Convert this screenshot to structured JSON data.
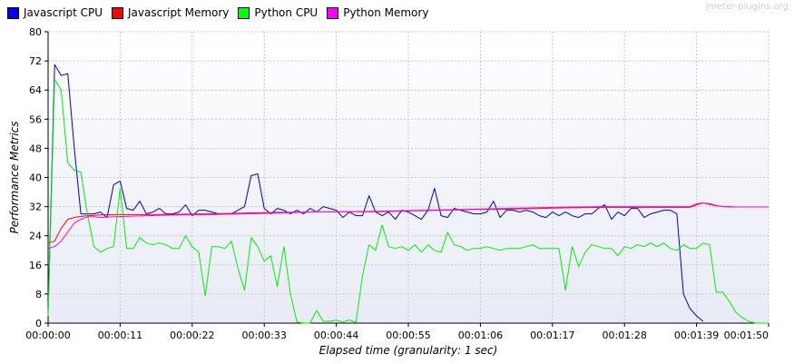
{
  "watermark": "jmeter-plugins.org",
  "colors": {
    "background": "#ffffff",
    "plot_bg_top": "#ffffff",
    "plot_bg_bottom": "#e8ebf5",
    "grid": "#c8c8c8",
    "axis": "#000000"
  },
  "chart_data": {
    "type": "line",
    "title": "",
    "xlabel": "Elapsed time (granularity: 1 sec)",
    "ylabel": "Performance Metrics",
    "ylim": [
      0,
      80
    ],
    "xlim": [
      0,
      110
    ],
    "grid": true,
    "legend_position": "top-left",
    "y_ticks": [
      0,
      8,
      16,
      24,
      32,
      40,
      48,
      56,
      64,
      72,
      80
    ],
    "y_tick_labels": [
      "0",
      "8",
      "16",
      "24",
      "32",
      "40",
      "48",
      "56",
      "64",
      "72",
      "80"
    ],
    "x_ticks": [
      0,
      11,
      22,
      33,
      44,
      55,
      66,
      77,
      88,
      99,
      110
    ],
    "x_tick_labels": [
      "00:00:00",
      "00:00:11",
      "00:00:22",
      "00:00:33",
      "00:00:44",
      "00:00:55",
      "00:01:06",
      "00:01:17",
      "00:01:28",
      "00:01:39",
      "00:01:50"
    ],
    "series": [
      {
        "name": "Javascript CPU",
        "color": "#0000cc",
        "legend_color": "#0000ff",
        "x": [
          0,
          1,
          2,
          3,
          4,
          5,
          6,
          7,
          8,
          9,
          10,
          11,
          12,
          13,
          14,
          15,
          16,
          17,
          18,
          19,
          20,
          21,
          22,
          23,
          24,
          25,
          26,
          27,
          28,
          29,
          30,
          31,
          32,
          33,
          34,
          35,
          36,
          37,
          38,
          39,
          40,
          41,
          42,
          43,
          44,
          45,
          46,
          47,
          48,
          49,
          50,
          51,
          52,
          53,
          54,
          55,
          56,
          57,
          58,
          59,
          60,
          61,
          62,
          63,
          64,
          65,
          66,
          67,
          68,
          69,
          70,
          71,
          72,
          73,
          74,
          75,
          76,
          77,
          78,
          79,
          80,
          81,
          82,
          83,
          84,
          85,
          86,
          87,
          88,
          89,
          90,
          91,
          92,
          93,
          94,
          95,
          96,
          97,
          98,
          99,
          100
        ],
        "values": [
          3,
          71,
          68,
          68.5,
          48,
          30,
          30,
          30,
          30.5,
          29,
          38,
          39,
          31.5,
          31,
          33.5,
          30,
          30.5,
          31.5,
          30,
          30,
          30.5,
          32.5,
          29.5,
          31,
          31,
          30.5,
          30,
          30,
          30,
          31,
          32,
          40.5,
          41,
          31.5,
          30,
          31.5,
          31,
          30,
          31,
          30,
          31.5,
          30.5,
          32,
          31.5,
          31,
          29,
          30.5,
          29.5,
          29.5,
          35,
          30.5,
          29.5,
          30.5,
          28.5,
          31,
          30.5,
          29.5,
          28.5,
          31,
          37,
          29.5,
          29,
          31.5,
          31,
          30.5,
          30,
          30,
          30.5,
          33.5,
          29,
          31,
          31,
          30.5,
          31,
          30.5,
          29.5,
          29,
          30.5,
          29.5,
          30.5,
          29.5,
          29,
          30,
          30,
          31.5,
          32.5,
          28.5,
          30.5,
          29.5,
          31.5,
          31.5,
          29,
          30,
          30.5,
          31,
          31,
          30,
          8,
          4,
          2,
          0.5
        ]
      },
      {
        "name": "Javascript Memory",
        "color": "#ff0000",
        "legend_color": "#ff0000",
        "x": [
          0,
          1,
          2,
          3,
          4,
          5,
          6,
          7,
          8,
          10,
          15,
          20,
          25,
          30,
          35,
          40,
          45,
          50,
          55,
          60,
          65,
          70,
          75,
          80,
          85,
          90,
          95,
          98,
          99,
          100,
          101,
          102,
          103,
          104,
          105,
          106,
          107,
          108,
          109,
          110
        ],
        "values": [
          22,
          22.5,
          26,
          28.5,
          29,
          29.3,
          29.5,
          29.6,
          29.7,
          29.8,
          29.8,
          29.9,
          30,
          30.2,
          30.4,
          30.5,
          30.6,
          30.6,
          30.8,
          31,
          31.2,
          31.3,
          31.5,
          31.7,
          31.8,
          31.8,
          31.8,
          31.8,
          32.5,
          33,
          32.8,
          32.3,
          32,
          32,
          31.9,
          31.9,
          31.9,
          31.9,
          31.9,
          31.9
        ]
      },
      {
        "name": "Python CPU",
        "color": "#00ee00",
        "legend_color": "#00ff00",
        "x": [
          0,
          1,
          2,
          3,
          4,
          5,
          6,
          7,
          8,
          9,
          10,
          11,
          12,
          13,
          14,
          15,
          16,
          17,
          18,
          19,
          20,
          21,
          22,
          23,
          24,
          25,
          26,
          27,
          28,
          29,
          30,
          31,
          32,
          33,
          34,
          35,
          36,
          37,
          38,
          39,
          40,
          41,
          42,
          43,
          44,
          45,
          46,
          47,
          48,
          49,
          50,
          51,
          52,
          53,
          54,
          55,
          56,
          57,
          58,
          59,
          60,
          61,
          62,
          63,
          64,
          65,
          66,
          67,
          68,
          69,
          70,
          71,
          72,
          73,
          74,
          75,
          76,
          77,
          78,
          79,
          80,
          81,
          82,
          83,
          84,
          85,
          86,
          87,
          88,
          89,
          90,
          91,
          92,
          93,
          94,
          95,
          96,
          97,
          98,
          99,
          100,
          101,
          102,
          103,
          104,
          105,
          106,
          107,
          108,
          109,
          110
        ],
        "values": [
          2,
          67,
          64,
          44,
          42,
          41.5,
          30,
          21,
          19.5,
          20.5,
          21,
          37,
          20.5,
          20.5,
          23.5,
          22,
          21.5,
          22,
          21.5,
          20.5,
          20.5,
          24,
          21,
          19.5,
          7.5,
          21,
          21,
          20.5,
          22.5,
          15,
          9,
          23.5,
          21,
          17,
          18.5,
          10,
          21,
          8,
          0.3,
          0,
          0,
          3.5,
          0.5,
          0.5,
          0.8,
          0.3,
          0.9,
          0.2,
          13,
          21.5,
          20,
          27,
          21,
          20.5,
          21,
          20,
          21.5,
          19.5,
          21.5,
          20,
          19.5,
          25,
          21.5,
          21,
          20,
          20.5,
          20.5,
          21,
          20.5,
          20,
          20.5,
          20.5,
          20.5,
          21,
          21.5,
          20.5,
          20.5,
          20.5,
          20.5,
          9,
          21,
          15.5,
          19.5,
          21.5,
          21,
          20.5,
          20.5,
          18.5,
          21,
          20.5,
          21.5,
          21,
          22,
          21,
          22,
          20.5,
          20,
          21.5,
          20.5,
          20.5,
          22,
          21.5,
          8.5,
          8.5,
          6,
          3,
          1.5,
          0.5,
          0,
          0,
          0
        ]
      },
      {
        "name": "Python Memory",
        "color": "#ff00ff",
        "legend_color": "#ff00ff",
        "x": [
          0,
          1,
          2,
          3,
          4,
          5,
          6,
          7,
          8,
          10,
          15,
          20,
          25,
          30,
          35,
          40,
          45,
          50,
          55,
          60,
          65,
          70,
          75,
          80,
          85,
          90,
          95,
          98,
          99,
          100,
          101,
          102,
          103,
          104,
          105,
          106,
          107,
          108,
          109,
          110
        ],
        "values": [
          20.5,
          21,
          22.5,
          25,
          27.5,
          28.5,
          29.2,
          29.2,
          29,
          29.2,
          29.5,
          29.7,
          29.8,
          30,
          30.2,
          30.5,
          30.6,
          30.7,
          30.9,
          31.1,
          31.3,
          31.5,
          31.7,
          31.9,
          32,
          32,
          32,
          32,
          32.8,
          33,
          32.6,
          32.2,
          32,
          31.9,
          31.9,
          31.9,
          31.9,
          31.9,
          31.9,
          31.9
        ]
      }
    ]
  }
}
